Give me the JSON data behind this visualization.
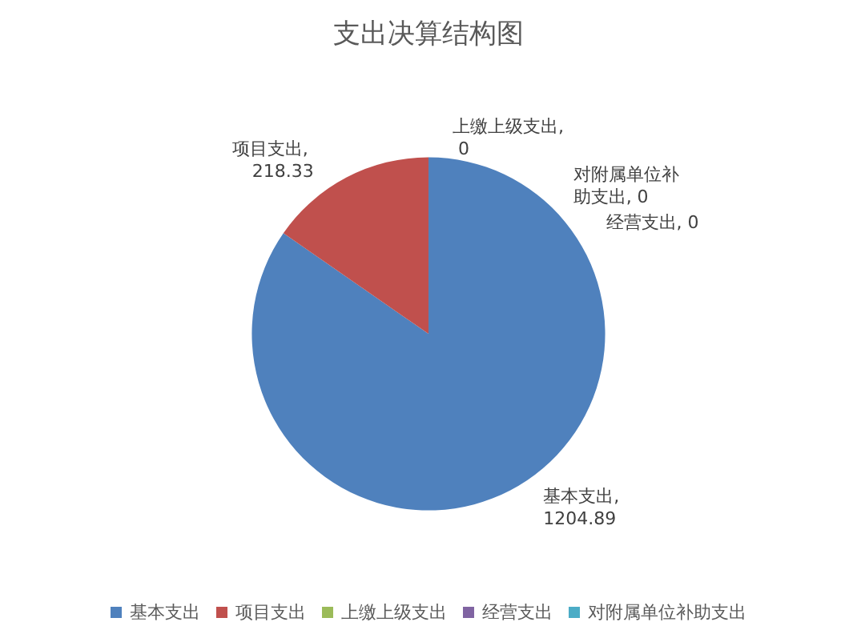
{
  "chart_data": {
    "type": "pie",
    "title": "支出决算结构图",
    "categories": [
      "基本支出",
      "项目支出",
      "上缴上级支出",
      "经营支出",
      "对附属单位补助支出"
    ],
    "values": [
      1204.89,
      218.33,
      0,
      0,
      0
    ],
    "colors": [
      "#4f81bd",
      "#c0504d",
      "#9bbb59",
      "#8064a2",
      "#4bacc6"
    ],
    "value_labels": [
      "基本支出, 1204.89",
      "项目支出, 218.33",
      "上缴上级支出, 0",
      "经营支出, 0",
      "对附属单位补助支出, 0"
    ],
    "legend": "bottom"
  }
}
